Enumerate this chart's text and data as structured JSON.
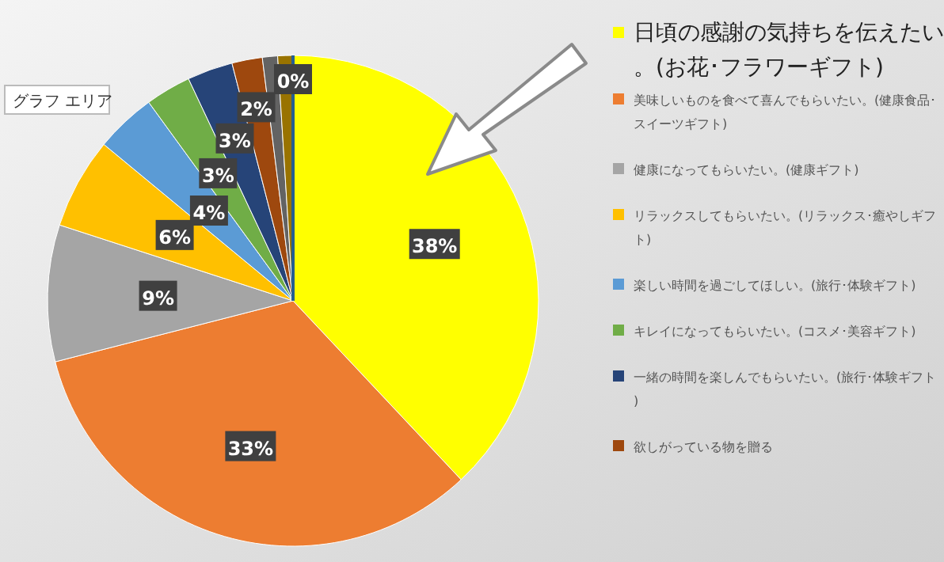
{
  "chart_data": {
    "type": "pie",
    "categories": [
      "日頃の感謝の気持ちを伝えたい。(お花･フラワーギフト)",
      "美味しいものを食べて喜んでもらいたい。(健康食品･スイーツギフト)",
      "健康になってもらいたい。(健康ギフト)",
      "リラックスしてもらいたい。(リラックス･癒やしギフト)",
      "楽しい時間を過ごしてほしい。(旅行･体験ギフト)",
      "キレイになってもらいたい。(コスメ･美容ギフト)",
      "一緒の時間を楽しんでもらいたい。(旅行･体験ギフト)",
      "欲しがっている物を贈る",
      null,
      null,
      null
    ],
    "values": [
      38,
      33,
      9,
      6,
      4,
      3,
      3,
      2,
      1,
      1,
      0
    ],
    "value_labels": [
      "38%",
      "33%",
      "9%",
      "6%",
      "4%",
      "3%",
      "3%",
      "2%",
      null,
      null,
      "0%"
    ],
    "colors": [
      "#ffff00",
      "#ed7d31",
      "#a5a5a5",
      "#ffc000",
      "#5b9bd5",
      "#70ad47",
      "#264478",
      "#9e480e",
      "#636363",
      "#997300",
      "#255e91"
    ],
    "legend": "right",
    "annotations": [
      "グラフ エリア"
    ]
  }
}
